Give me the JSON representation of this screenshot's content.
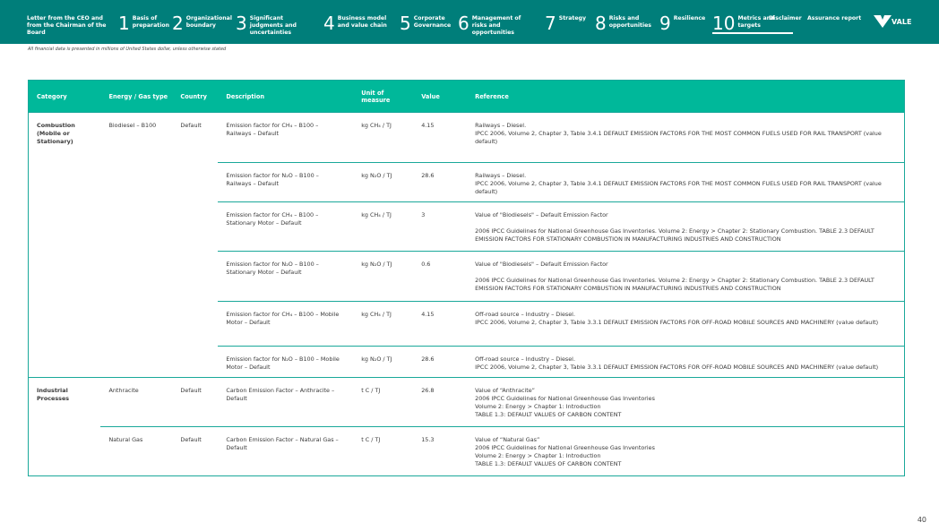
{
  "nav": {
    "items": [
      {
        "num": "",
        "label": "Letter from the CEO and from the Chairman of the Board"
      },
      {
        "num": "1",
        "label": "Basis of preparation"
      },
      {
        "num": "2",
        "label": "Organizational boundary"
      },
      {
        "num": "3",
        "label": "Significant judgments and uncertainties"
      },
      {
        "num": "4",
        "label": "Business model and value chain"
      },
      {
        "num": "5",
        "label": "Corporate Governance"
      },
      {
        "num": "6",
        "label": "Management of risks and opportunities"
      },
      {
        "num": "7",
        "label": "Strategy"
      },
      {
        "num": "8",
        "label": "Risks and opportunities"
      },
      {
        "num": "9",
        "label": "Resilience"
      },
      {
        "num": "10",
        "label": "Metrics and targets"
      },
      {
        "num": "",
        "label": "Disclaimer"
      },
      {
        "num": "",
        "label": "Assurance report"
      }
    ],
    "active_index": 10,
    "logo": "VALE"
  },
  "note": "All financial data is presented in millions of United States dollar, unless otherwise stated",
  "table": {
    "headers": [
      "Category",
      "Energy / Gas type",
      "Country",
      "Description",
      "Unit of measure",
      "Value",
      "Reference"
    ],
    "groups": [
      {
        "category": "Combustion (Mobile or Stationary)",
        "energy": "Biodiesel – B100",
        "country": "Default",
        "rows": [
          {
            "description": "Emission factor for CH₄ – B100 – Railways – Default",
            "unit": "kg CH₄ / TJ",
            "value": "4.15",
            "reference": [
              "Railways – Diesel.",
              "IPCC 2006, Volume 2, Chapter 3, Table 3.4.1 DEFAULT EMISSION FACTORS FOR THE MOST COMMON FUELS USED FOR RAIL TRANSPORT (value default)"
            ]
          },
          {
            "description": "Emission factor for N₂O – B100 – Railways – Default",
            "unit": "kg N₂O / TJ",
            "value": "28.6",
            "reference": [
              "Railways – Diesel.",
              "IPCC 2006, Volume 2, Chapter 3, Table 3.4.1 DEFAULT EMISSION FACTORS FOR THE MOST COMMON FUELS USED FOR RAIL TRANSPORT (value default)"
            ]
          },
          {
            "description": "Emission factor for CH₄ – B100 – Stationary Motor – Default",
            "unit": "kg CH₄ / TJ",
            "value": "3",
            "reference": [
              "Value of \"Biodiesels\" – Default Emission Factor",
              "",
              "2006 IPCC Guidelines for National Greenhouse Gas Inventories. Volume 2: Energy > Chapter 2: Stationary Combustion. TABLE 2.3 DEFAULT EMISSION FACTORS FOR STATIONARY COMBUSTION IN MANUFACTURING INDUSTRIES AND CONSTRUCTION"
            ]
          },
          {
            "description": "Emission factor for N₂O – B100 – Stationary Motor – Default",
            "unit": "kg N₂O / TJ",
            "value": "0.6",
            "reference": [
              "Value of \"Biodiesels\" – Default Emission Factor",
              "",
              "2006 IPCC Guidelines for National Greenhouse Gas Inventories. Volume 2: Energy > Chapter 2: Stationary Combustion. TABLE 2.3 DEFAULT EMISSION FACTORS FOR STATIONARY COMBUSTION IN MANUFACTURING INDUSTRIES AND CONSTRUCTION"
            ]
          },
          {
            "description": "Emission factor for CH₄ – B100 – Mobile Motor – Default",
            "unit": "kg CH₄ / TJ",
            "value": "4.15",
            "reference": [
              "Off-road source – Industry – Diesel.",
              "IPCC 2006, Volume 2, Chapter 3, Table 3.3.1 DEFAULT EMISSION FACTORS FOR OFF-ROAD MOBILE SOURCES AND MACHINERY (value default)"
            ]
          },
          {
            "description": "Emission factor for N₂O – B100 – Mobile Motor – Default",
            "unit": "kg N₂O / TJ",
            "value": "28.6",
            "reference": [
              "Off-road source – Industry – Diesel.",
              "IPCC 2006, Volume 2, Chapter 3, Table 3.3.1 DEFAULT EMISSION FACTORS FOR OFF-ROAD MOBILE SOURCES AND MACHINERY (value default)"
            ]
          }
        ]
      },
      {
        "category": "Industrial Processes",
        "rows": [
          {
            "energy": "Anthracite",
            "country": "Default",
            "description": "Carbon Emission Factor – Anthracite – Default",
            "unit": "t C / TJ",
            "value": "26.8",
            "reference": [
              "Value of “Anthracite”",
              "2006 IPCC Guidelines for National Greenhouse Gas Inventories",
              "Volume 2: Energy > Chapter 1: Introduction",
              "TABLE 1.3: DEFAULT VALUES OF CARBON CONTENT"
            ]
          },
          {
            "energy": "Natural Gas",
            "country": "Default",
            "description": "Carbon Emission Factor – Natural Gas – Default",
            "unit": "t C / TJ",
            "value": "15.3",
            "reference": [
              "Value of “Natural Gas”",
              "2006 IPCC Guidelines for National Greenhouse Gas Inventories",
              "Volume 2: Energy > Chapter 1: Introduction",
              "TABLE 1.3: DEFAULT VALUES OF CARBON CONTENT"
            ]
          }
        ]
      }
    ]
  },
  "page_number": "40"
}
